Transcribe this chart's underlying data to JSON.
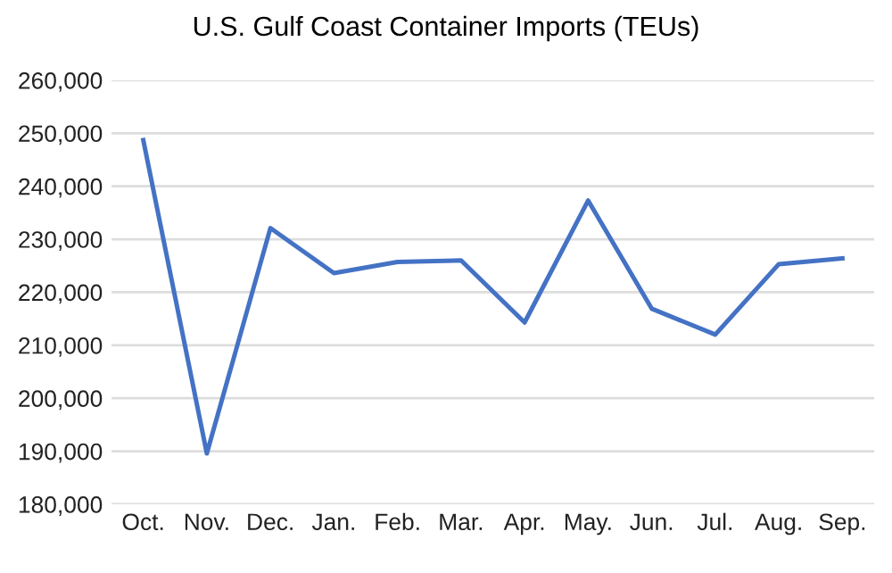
{
  "chart_data": {
    "type": "line",
    "title": "U.S. Gulf Coast Container Imports (TEUs)",
    "categories": [
      "Oct.",
      "Nov.",
      "Dec.",
      "Jan.",
      "Feb.",
      "Mar.",
      "Apr.",
      "May.",
      "Jun.",
      "Jul.",
      "Aug.",
      "Sep."
    ],
    "series": [
      {
        "color": "#4472c4",
        "values": [
          248700,
          189600,
          232100,
          223600,
          225700,
          226000,
          214300,
          237300,
          216900,
          212000,
          225300,
          226400
        ]
      }
    ],
    "ylim": [
      180000,
      260000
    ],
    "yticks": [
      {
        "value": 180000,
        "label": "180,000"
      },
      {
        "value": 190000,
        "label": "190,000"
      },
      {
        "value": 200000,
        "label": "200,000"
      },
      {
        "value": 210000,
        "label": "210,000"
      },
      {
        "value": 220000,
        "label": "220,000"
      },
      {
        "value": 230000,
        "label": "230,000"
      },
      {
        "value": 240000,
        "label": "240,000"
      },
      {
        "value": 250000,
        "label": "250,000"
      },
      {
        "value": 260000,
        "label": "260,000"
      }
    ],
    "grid": "y",
    "marker": "none",
    "line_style": "solid"
  }
}
